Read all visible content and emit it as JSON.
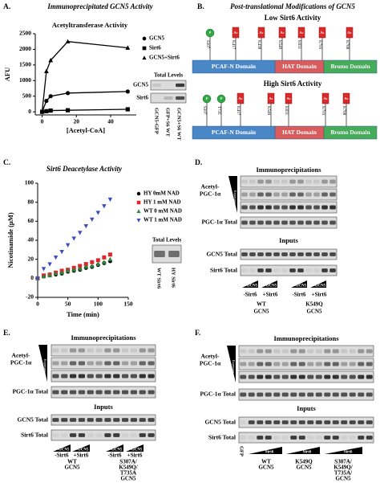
{
  "chart_data": [
    {
      "type": "line",
      "title": "Immunoprecipitated GCN5 Activity",
      "subtitle": "Acetyltransferase Activity",
      "x_label": "[Acetyl-CoA]",
      "y_label": "AFU",
      "x": [
        0,
        2.5,
        5,
        15,
        50
      ],
      "series": [
        {
          "name": "GCN5",
          "color": "#000000",
          "marker": "circle",
          "values": [
            0,
            350,
            500,
            600,
            650
          ]
        },
        {
          "name": "Sirt6",
          "color": "#000000",
          "marker": "square",
          "values": [
            0,
            20,
            40,
            50,
            80
          ]
        },
        {
          "name": "GCN5+Sirt6",
          "color": "#000000",
          "marker": "triangle",
          "values": [
            0,
            1300,
            1650,
            2250,
            2050
          ]
        }
      ],
      "xlim": [
        -4,
        55
      ],
      "xticks": [
        0,
        20,
        40
      ],
      "ylim": [
        -100,
        2500
      ],
      "yticks": [
        0,
        500,
        1000,
        1500,
        2000,
        2500
      ]
    },
    {
      "type": "scatter",
      "title": "Sirt6 Deacetylase Activity",
      "x_label": "Time (min)",
      "y_label": "Nicotinamide (µM)",
      "x": [
        0,
        10,
        20,
        30,
        40,
        50,
        60,
        70,
        80,
        90,
        100,
        110,
        120
      ],
      "series": [
        {
          "name": "HY 0mM NAD",
          "color": "#000000",
          "marker": "circle",
          "values": [
            0,
            2,
            3,
            4,
            5,
            7,
            8,
            9,
            11,
            12,
            14,
            16,
            18
          ]
        },
        {
          "name": "HY 1 mM NAD",
          "color": "#e0262b",
          "marker": "square",
          "values": [
            0,
            3,
            4,
            6,
            8,
            9,
            11,
            13,
            15,
            17,
            19,
            22,
            25
          ]
        },
        {
          "name": "WT 0 mM NAD",
          "color": "#1e8a3c",
          "marker": "triangle",
          "values": [
            0,
            2,
            3,
            5,
            6,
            8,
            9,
            10,
            12,
            13,
            15,
            17,
            20
          ]
        },
        {
          "name": "WT 1 mM NAD",
          "color": "#3b4fb8",
          "marker": "triangle-down",
          "values": [
            0,
            10,
            15,
            22,
            28,
            35,
            42,
            48,
            55,
            62,
            69,
            76,
            83
          ]
        }
      ],
      "xlim": [
        0,
        150
      ],
      "xticks": [
        0,
        50,
        100,
        150
      ],
      "ylim": [
        -20,
        100
      ],
      "yticks": [
        -20,
        0,
        20,
        40,
        60,
        80,
        100
      ]
    }
  ],
  "panel_a": {
    "label": "A.",
    "inset_title": "Total Levels",
    "blots": [
      "GCN5",
      "Sirt6"
    ],
    "lanes": [
      "GCN5-GFP",
      "GFP+S6 WT",
      "GCN5+S6 WT"
    ]
  },
  "panel_b": {
    "label": "B.",
    "title": "Post-translational Modifications of GCN5",
    "domains": [
      "PCAF-N Domain",
      "HAT Domain",
      "Bromo Domain"
    ],
    "states": [
      {
        "title": "Low Sirt6 Activity",
        "sites": [
          {
            "label": "S307",
            "mod": "P"
          },
          {
            "label": "K417",
            "mod": "Ac"
          },
          {
            "label": "K438",
            "mod": "Ac"
          },
          {
            "label": "K549",
            "mod": "Ac"
          },
          {
            "label": "K631",
            "mod": "Ac"
          },
          {
            "label": "K703",
            "mod": "Ac"
          },
          {
            "label": "K768",
            "mod": "Ac"
          }
        ]
      },
      {
        "title": "High Sirt6 Activity",
        "sites": [
          {
            "label": "S307",
            "mod": "P"
          },
          {
            "label": "T735",
            "mod": "P"
          },
          {
            "label": "K417",
            "mod": "Ac"
          },
          {
            "label": "K549",
            "mod": "Ac"
          },
          {
            "label": "K631",
            "mod": "Ac"
          },
          {
            "label": "K703",
            "mod": "Ac"
          },
          {
            "label": "K768",
            "mod": "Ac"
          }
        ]
      }
    ]
  },
  "panel_c": {
    "label": "C.",
    "inset_title": "Total Levels",
    "lanes": [
      "WT Sirt6",
      "HY Sirt6"
    ]
  },
  "panel_d": {
    "label": "D.",
    "ip_title": "Immunoprecipitations",
    "acetyl": [
      "Acetyl-",
      "PGC-1α"
    ],
    "exposure": "Exposure",
    "pgc_total": "PGC-1α Total",
    "inputs_title": "Inputs",
    "gcn5_total": "GCN5 Total",
    "sirt6_total": "Sirt6 Total",
    "wedge": "GCN5",
    "lanes": [
      "-Sirt6",
      "+Sirt6",
      "-Sirt6",
      "+Sirt6"
    ],
    "groups": [
      [
        "WT",
        "GCN5"
      ],
      [
        "K549Q",
        "GCN5"
      ]
    ]
  },
  "panel_e": {
    "label": "E.",
    "ip_title": "Immunoprecipitations",
    "acetyl": [
      "Acetyl-",
      "PGC-1α"
    ],
    "exposure": "Exposure",
    "pgc_total": "PGC-1α Total",
    "inputs_title": "Inputs",
    "gcn5_total": "GCN5 Total",
    "sirt6_total": "Sirt6 Total",
    "wedge": "GCN5",
    "lanes": [
      "-Sirt6",
      "+Sirt6",
      "-Sirt6",
      "+Sirt6"
    ],
    "groups": [
      [
        "WT",
        "GCN5"
      ],
      [
        "S307A/",
        "K549Q/",
        "T735A",
        "GCN5"
      ]
    ]
  },
  "panel_f": {
    "label": "F.",
    "ip_title": "Immunoprecipitations",
    "acetyl": [
      "Acetyl-",
      "PGC-1α"
    ],
    "exposure": "Exposure",
    "pgc_total": "PGC-1α Total",
    "inputs_title": "Inputs",
    "gcn5_total": "GCN5 Total",
    "sirt6_total": "Sirt6 Total",
    "gfp": "GFP",
    "wedge": "Sirt6",
    "groups": [
      [
        "WT",
        "GCN5"
      ],
      [
        "K549Q",
        "GCN5"
      ],
      [
        "S307A/",
        "K549Q/",
        "T735A/",
        "GCN5"
      ]
    ]
  }
}
